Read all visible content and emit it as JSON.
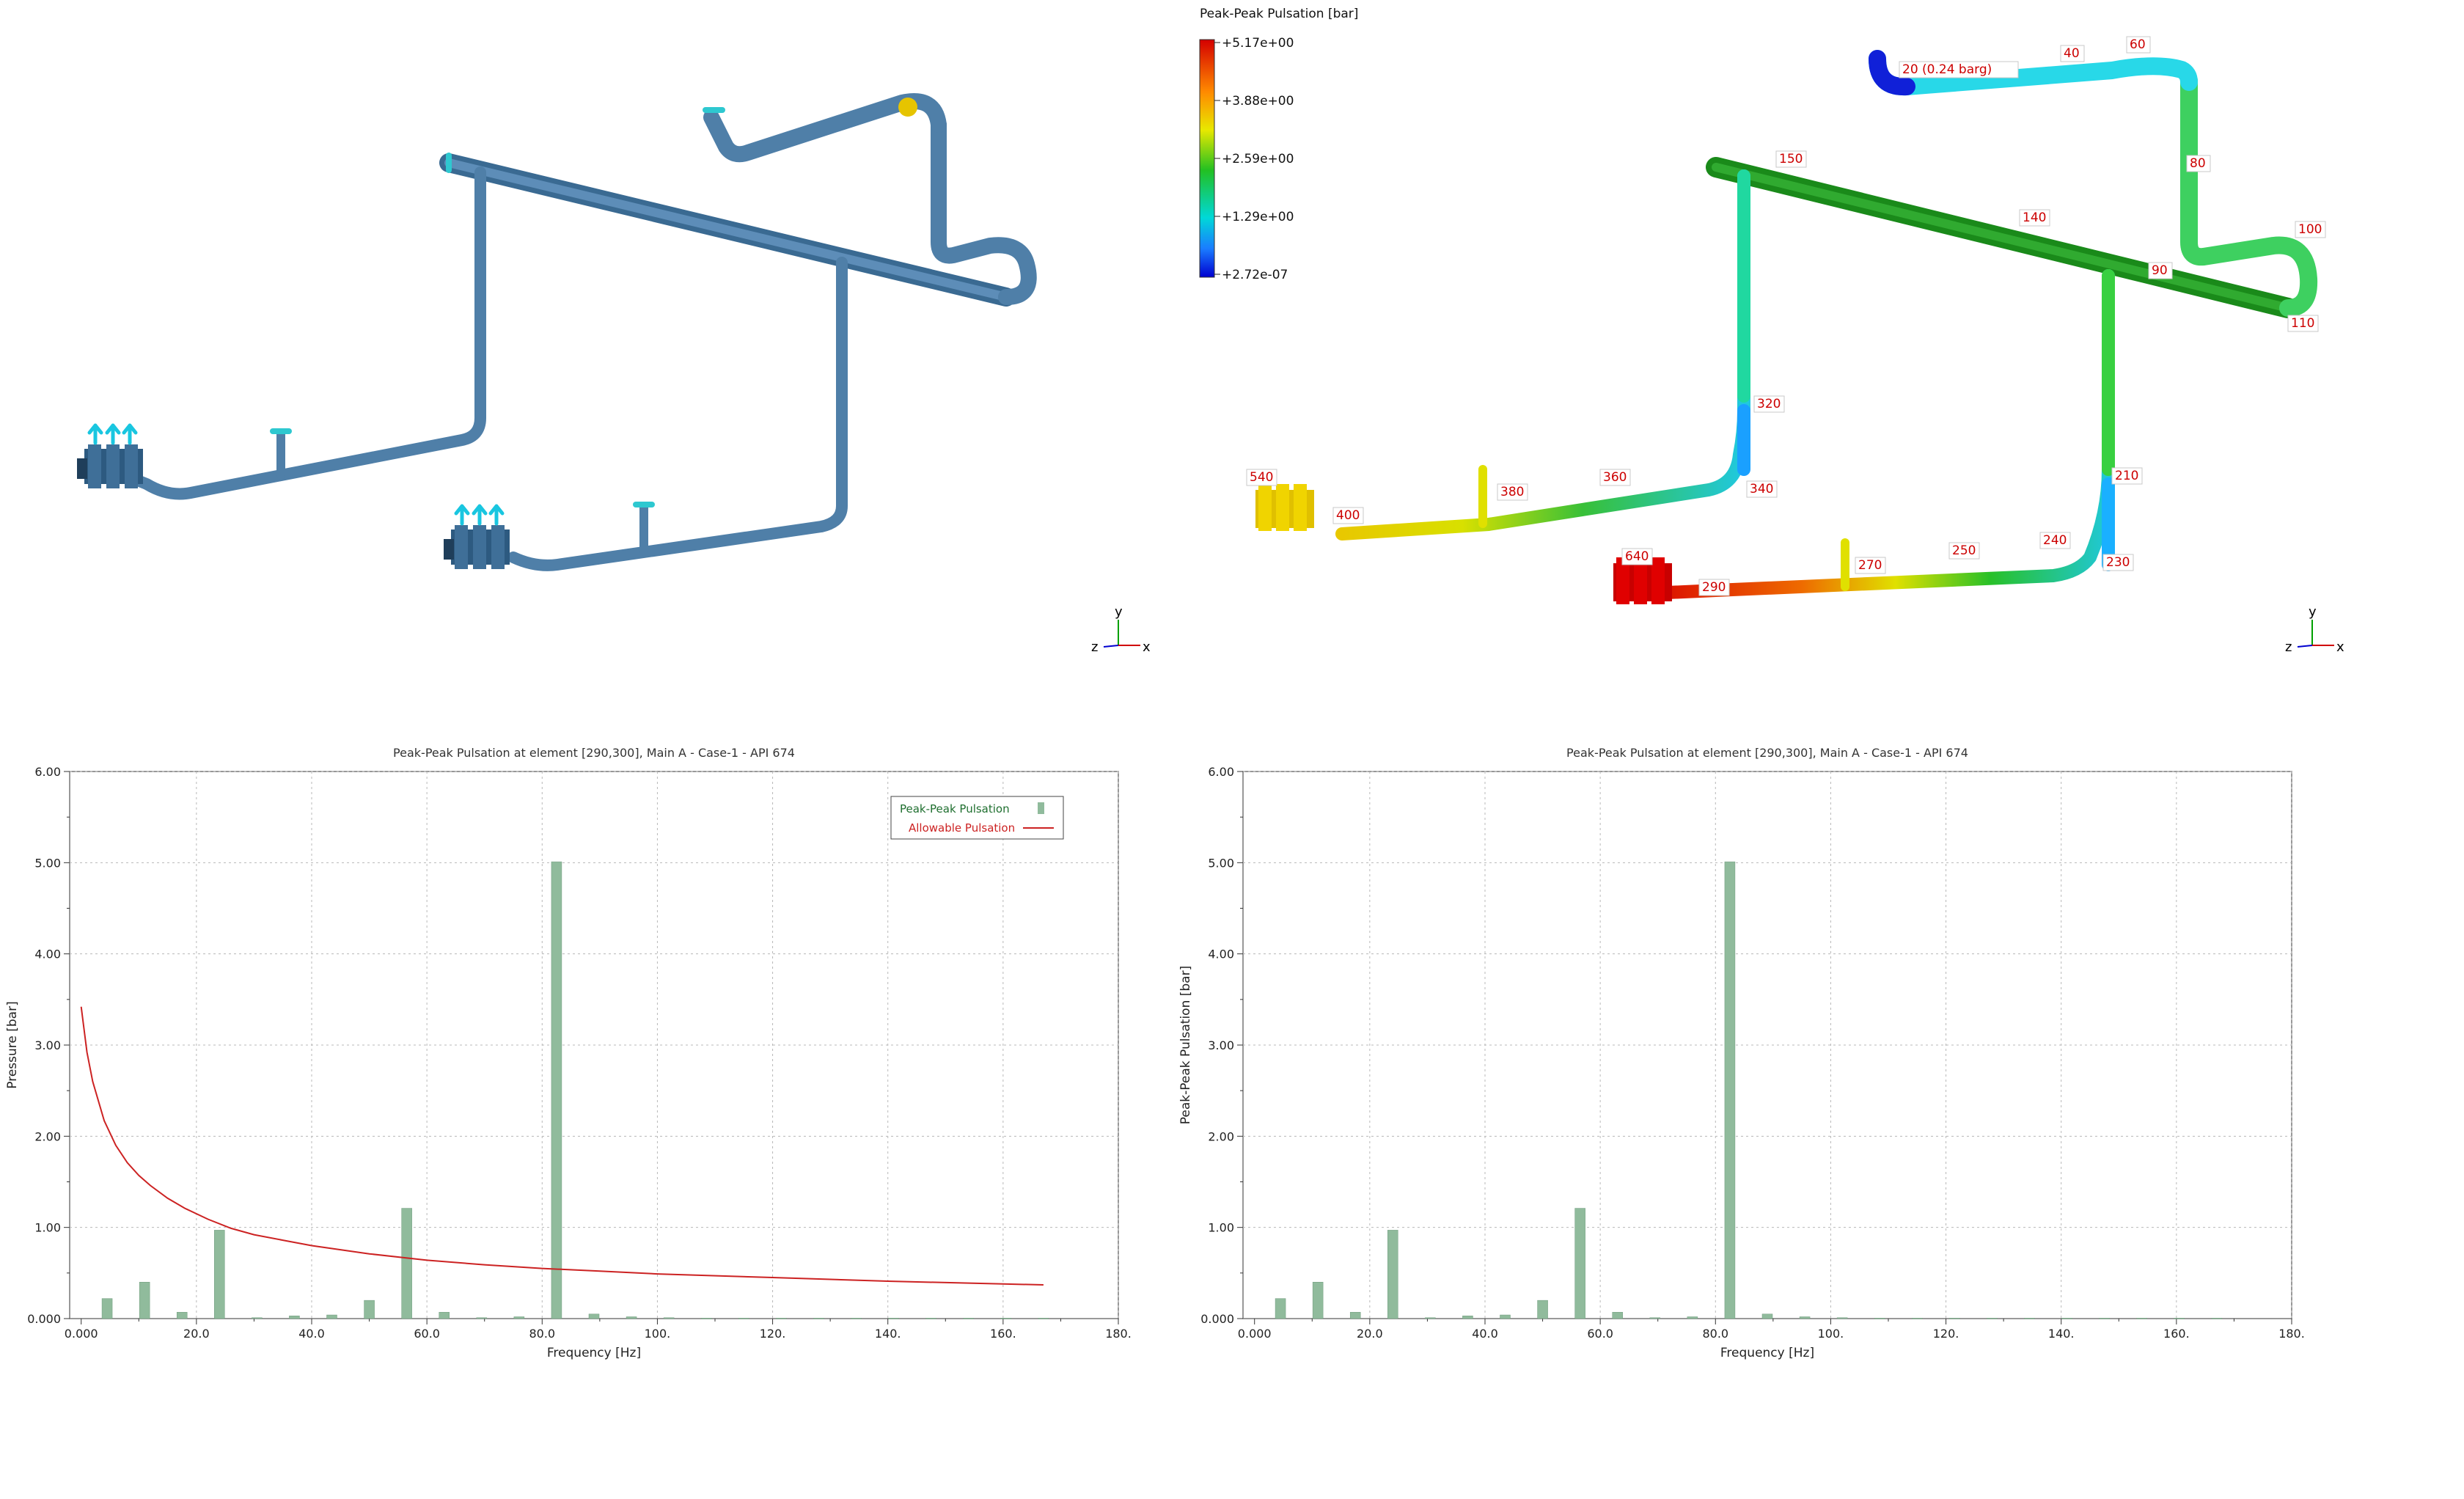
{
  "colorbar": {
    "title": "Peak-Peak Pulsation [bar]",
    "ticks": [
      "+5.17e+00",
      "+3.88e+00",
      "+2.59e+00",
      "+1.29e+00",
      "+2.72e-07"
    ]
  },
  "node_labels": [
    "20 (0.24 barg)",
    "40",
    "60",
    "80",
    "100",
    "110",
    "90",
    "140",
    "150",
    "320",
    "340",
    "360",
    "380",
    "400",
    "540",
    "210",
    "230",
    "240",
    "250",
    "270",
    "290",
    "640"
  ],
  "axis_triad": {
    "y": "y",
    "z": "z",
    "x": "x"
  },
  "colors": {
    "pipe_gray": "#4f7fa8",
    "bar_fill": "#90bb9c",
    "allowable_line": "#cc2222",
    "legend_peak_text": "#1f6f2f",
    "legend_allow_text": "#cc2222"
  },
  "chart_data": [
    {
      "type": "bar",
      "title": "Peak-Peak Pulsation at element [290,300], Main A - Case-1 - API 674",
      "xlabel": "Frequency [Hz]",
      "ylabel": "Pressure [bar]",
      "xlim": [
        -2,
        180
      ],
      "ylim": [
        0,
        6
      ],
      "xticks": [
        "0.000",
        "20.0",
        "40.0",
        "60.0",
        "80.0",
        "100.",
        "120.",
        "140.",
        "160.",
        "180."
      ],
      "yticks": [
        "0.000",
        "1.00",
        "2.00",
        "3.00",
        "4.00",
        "5.00",
        "6.00"
      ],
      "grid": true,
      "legend_position": "top-right",
      "series": [
        {
          "name": "Peak-Peak Pulsation",
          "type": "bar",
          "x": [
            4.5,
            11.0,
            17.5,
            24.0,
            30.5,
            37.0,
            43.5,
            50.0,
            56.5,
            63.0,
            69.5,
            76.0,
            82.5,
            89.0,
            95.5,
            102.0,
            108.5,
            115.0,
            121.5,
            128.0,
            134.5,
            141.0,
            147.5,
            154.0,
            160.5,
            167.0
          ],
          "y": [
            0.22,
            0.4,
            0.07,
            0.97,
            0.01,
            0.03,
            0.04,
            0.2,
            1.21,
            0.07,
            0.01,
            0.02,
            5.01,
            0.05,
            0.02,
            0.01,
            0.005,
            0.005,
            0.005,
            0.005,
            0.005,
            0.005,
            0.005,
            0.005,
            0.005,
            0.005
          ]
        },
        {
          "name": "Allowable Pulsation",
          "type": "line",
          "x": [
            0,
            1,
            2,
            4,
            6,
            8,
            10,
            12,
            15,
            18,
            22,
            26,
            30,
            35,
            40,
            50,
            60,
            70,
            80,
            90,
            100,
            120,
            140,
            160,
            167
          ],
          "y": [
            3.42,
            2.92,
            2.6,
            2.17,
            1.9,
            1.71,
            1.57,
            1.46,
            1.32,
            1.21,
            1.09,
            0.99,
            0.92,
            0.86,
            0.8,
            0.71,
            0.64,
            0.59,
            0.55,
            0.52,
            0.49,
            0.45,
            0.41,
            0.38,
            0.37
          ]
        }
      ]
    },
    {
      "type": "bar",
      "title": "Peak-Peak Pulsation at element [290,300], Main A - Case-1 - API 674",
      "xlabel": "Frequency [Hz]",
      "ylabel": "Peak-Peak Pulsation [bar]",
      "xlim": [
        -2,
        180
      ],
      "ylim": [
        0,
        6
      ],
      "xticks": [
        "0.000",
        "20.0",
        "40.0",
        "60.0",
        "80.0",
        "100.",
        "120.",
        "140.",
        "160.",
        "180."
      ],
      "yticks": [
        "0.000",
        "1.00",
        "2.00",
        "3.00",
        "4.00",
        "5.00",
        "6.00"
      ],
      "grid": true,
      "series": [
        {
          "type": "bar",
          "x": [
            4.5,
            11.0,
            17.5,
            24.0,
            30.5,
            37.0,
            43.5,
            50.0,
            56.5,
            63.0,
            69.5,
            76.0,
            82.5,
            89.0,
            95.5,
            102.0,
            108.5,
            115.0,
            121.5,
            128.0,
            134.5,
            141.0,
            147.5,
            154.0,
            160.5,
            167.0
          ],
          "y": [
            0.22,
            0.4,
            0.07,
            0.97,
            0.01,
            0.03,
            0.04,
            0.2,
            1.21,
            0.07,
            0.01,
            0.02,
            5.01,
            0.05,
            0.02,
            0.01,
            0.005,
            0.005,
            0.005,
            0.005,
            0.005,
            0.005,
            0.005,
            0.005,
            0.005,
            0.005
          ]
        }
      ]
    }
  ]
}
